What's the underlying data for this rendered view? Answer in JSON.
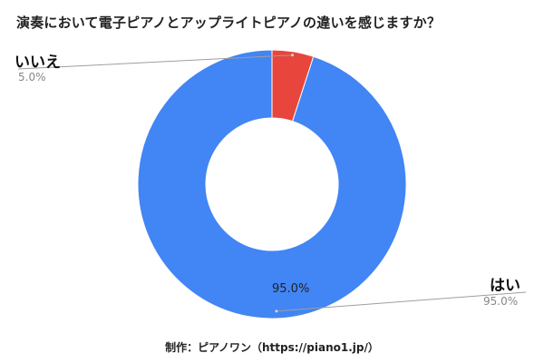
{
  "chart_data": {
    "type": "pie",
    "title": "演奏において電子ピアノとアップライトピアノの違いを感じますか？",
    "slices": [
      {
        "label": "はい",
        "value": 95.0,
        "value_label": "95.0%",
        "color": "#4285f4"
      },
      {
        "label": "いいえ",
        "value": 5.0,
        "value_label": "5.0%",
        "color": "#e8453c"
      }
    ],
    "donut": true,
    "inner_value_label": "95.0%"
  },
  "credit": "制作：ピアノワン（https://piano1.jp/）"
}
